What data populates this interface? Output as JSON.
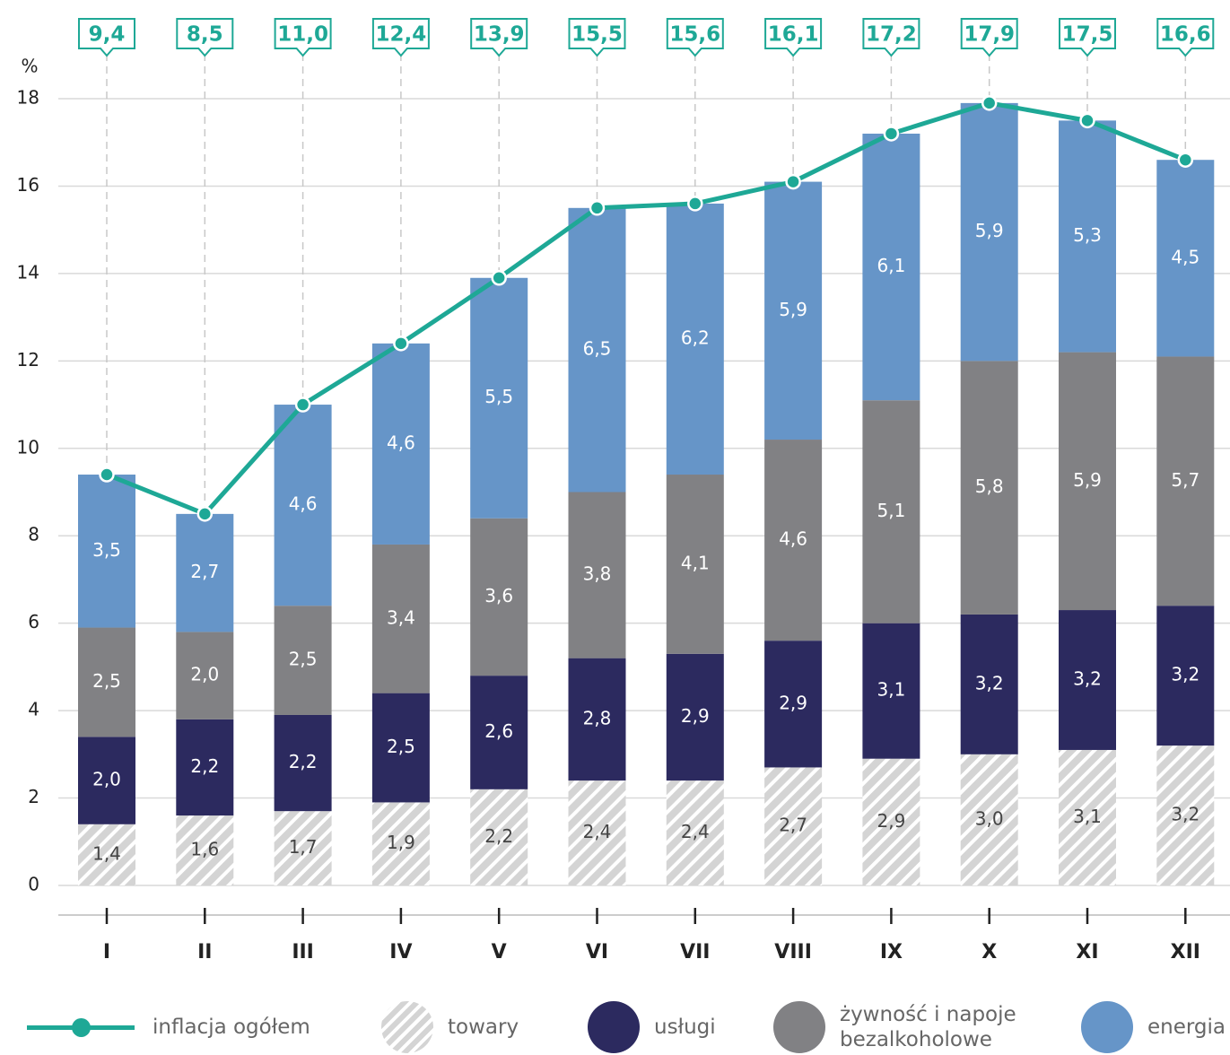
{
  "chart_data": {
    "type": "bar",
    "stacked": true,
    "ylabel": "%",
    "categories": [
      "I",
      "II",
      "III",
      "IV",
      "V",
      "VI",
      "VII",
      "VIII",
      "IX",
      "X",
      "XI",
      "XII"
    ],
    "ylim": [
      0,
      18
    ],
    "yticks": [
      0,
      2,
      4,
      6,
      8,
      10,
      12,
      14,
      16,
      18
    ],
    "grid": true,
    "legend": "bottom",
    "series": [
      {
        "name": "towary",
        "type": "bar",
        "pattern": "hatch",
        "color": "#d4d4d4",
        "values": [
          1.4,
          1.6,
          1.7,
          1.9,
          2.2,
          2.4,
          2.4,
          2.7,
          2.9,
          3.0,
          3.1,
          3.2
        ],
        "value_labels": [
          "1,4",
          "1,6",
          "1,7",
          "1,9",
          "2,2",
          "2,4",
          "2,4",
          "2,7",
          "2,9",
          "3,0",
          "3,1",
          "3,2"
        ]
      },
      {
        "name": "usługi",
        "type": "bar",
        "color": "#2c2a5f",
        "values": [
          2.0,
          2.2,
          2.2,
          2.5,
          2.6,
          2.8,
          2.9,
          2.9,
          3.1,
          3.2,
          3.2,
          3.2
        ],
        "value_labels": [
          "2,0",
          "2,2",
          "2,2",
          "2,5",
          "2,6",
          "2,8",
          "2,9",
          "2,9",
          "3,1",
          "3,2",
          "3,2",
          "3,2"
        ]
      },
      {
        "name": "żywność i napoje bezalkoholowe",
        "type": "bar",
        "color": "#818184",
        "values": [
          2.5,
          2.0,
          2.5,
          3.4,
          3.6,
          3.8,
          4.1,
          4.6,
          5.1,
          5.8,
          5.9,
          5.7
        ],
        "value_labels": [
          "2,5",
          "2,0",
          "2,5",
          "3,4",
          "3,6",
          "3,8",
          "4,1",
          "4,6",
          "5,1",
          "5,8",
          "5,9",
          "5,7"
        ]
      },
      {
        "name": "energia",
        "type": "bar",
        "color": "#6695c8",
        "values": [
          3.5,
          2.7,
          4.6,
          4.6,
          5.5,
          6.5,
          6.2,
          5.9,
          6.1,
          5.9,
          5.3,
          4.5
        ],
        "value_labels": [
          "3,5",
          "2,7",
          "4,6",
          "4,6",
          "5,5",
          "6,5",
          "6,2",
          "5,9",
          "6,1",
          "5,9",
          "5,3",
          "4,5"
        ]
      },
      {
        "name": "inflacja ogółem",
        "type": "line",
        "color": "#1ea896",
        "values": [
          9.4,
          8.5,
          11.0,
          12.4,
          13.9,
          15.5,
          15.6,
          16.1,
          17.2,
          17.9,
          17.5,
          16.6
        ],
        "value_labels": [
          "9,4",
          "8,5",
          "11,0",
          "12,4",
          "13,9",
          "15,5",
          "15,6",
          "16,1",
          "17,2",
          "17,9",
          "17,5",
          "16,6"
        ]
      }
    ]
  }
}
